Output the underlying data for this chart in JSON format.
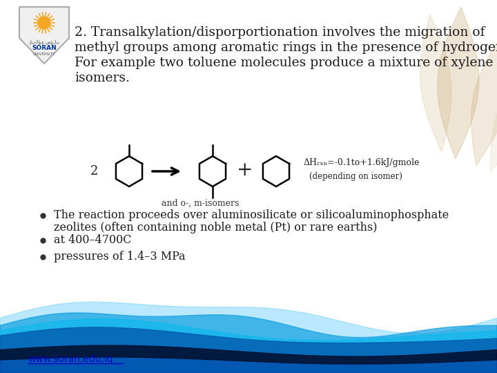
{
  "bg_color": "#ffffff",
  "title_line1": "2. Transalkylation/disporportionation involves the migration of",
  "title_line2": "methyl groups among aromatic rings in the presence of hydrogen.",
  "title_line3": "For example two toluene molecules produce a mixture of xylene",
  "title_line4": "isomers.",
  "title_color": "#1a1a1a",
  "title_fontsize": 13.5,
  "bullet1_line1": "The reaction proceeds over aluminosilicate or silicoaluminophosphate",
  "bullet1_line2": "zeolites (often containing noble metal (Pt) or rare earths)",
  "bullet2": "at 400–4700C",
  "bullet3": "pressures of 1.4–3 MPa",
  "bullet_color": "#1a1a1a",
  "bullet_fontsize": 11.5,
  "footer_text": "www.soran.edu.iq",
  "footer_color": "#0000cc",
  "logo_sun_color": "#f5a623",
  "logo_text_soran": "#003399",
  "dH_line1": "ΔHrxn=-0.1to+1.6kJ/gmole",
  "dH_line2": "(depending on isomer)",
  "isomers_label": "and o-, m-isomers"
}
